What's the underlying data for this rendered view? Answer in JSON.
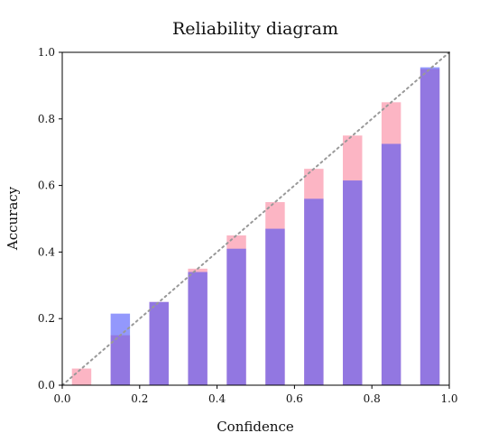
{
  "chart_data": {
    "type": "bar",
    "title": "Reliability diagram",
    "xlabel": "Confidence",
    "ylabel": "Accuracy",
    "xlim": [
      0.0,
      1.0
    ],
    "ylim": [
      0.0,
      1.0
    ],
    "x_ticks": [
      "0.0",
      "0.2",
      "0.4",
      "0.6",
      "0.8",
      "1.0"
    ],
    "y_ticks": [
      "0.0",
      "0.2",
      "0.4",
      "0.6",
      "0.8",
      "1.0"
    ],
    "bin_centers": [
      0.05,
      0.15,
      0.25,
      0.35,
      0.45,
      0.55,
      0.65,
      0.75,
      0.85,
      0.95
    ],
    "bar_width": 0.05,
    "series": [
      {
        "name": "",
        "color": "#fa7f9a",
        "opacity": 0.58,
        "values": [
          0.05,
          0.15,
          0.25,
          0.35,
          0.45,
          0.55,
          0.65,
          0.75,
          0.85,
          0.95
        ]
      },
      {
        "name": "",
        "color": "#3b44f9",
        "opacity": 0.55,
        "values": [
          0.0,
          0.215,
          0.25,
          0.34,
          0.41,
          0.47,
          0.56,
          0.615,
          0.725,
          0.955
        ]
      }
    ],
    "reference_line": {
      "points": [
        [
          0.0,
          0.0
        ],
        [
          1.0,
          1.0
        ]
      ],
      "style": "dotted",
      "color": "#999999"
    },
    "grid": false,
    "legend": "none"
  }
}
